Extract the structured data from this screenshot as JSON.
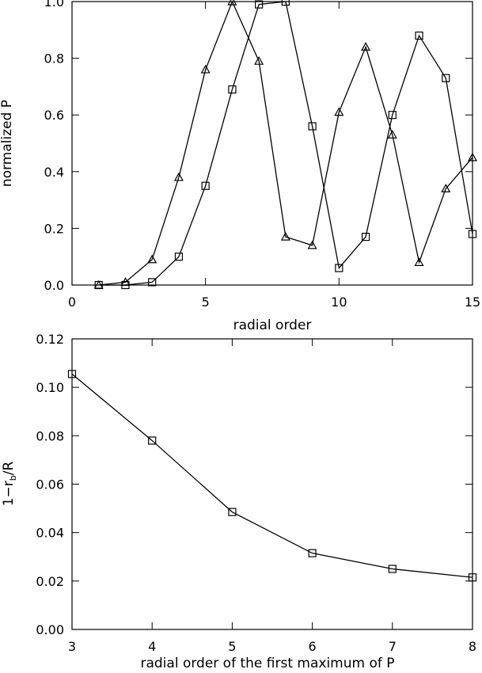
{
  "chart_data": [
    {
      "type": "line",
      "xlabel": "radial order",
      "ylabel": "normalized P",
      "xlim": [
        0,
        15
      ],
      "ylim": [
        0,
        1.0
      ],
      "x_ticks": [
        0,
        5,
        10,
        15
      ],
      "x_tick_labels": [
        "0",
        "5",
        "10",
        "15"
      ],
      "y_ticks": [
        0.0,
        0.2,
        0.4,
        0.6,
        0.8,
        1.0
      ],
      "y_tick_labels": [
        "0.0",
        "0.2",
        "0.4",
        "0.6",
        "0.8",
        "1.0"
      ],
      "grid": false,
      "series": [
        {
          "marker": "triangle",
          "x": [
            1,
            2,
            3,
            4,
            5,
            6,
            7,
            8,
            9,
            10,
            11,
            12,
            13,
            14,
            15
          ],
          "y": [
            0.0,
            0.01,
            0.09,
            0.38,
            0.76,
            1.0,
            0.79,
            0.17,
            0.14,
            0.61,
            0.84,
            0.53,
            0.08,
            0.34,
            0.45
          ]
        },
        {
          "marker": "square",
          "x": [
            1,
            2,
            3,
            4,
            5,
            6,
            7,
            8,
            9,
            10,
            11,
            12,
            13,
            14,
            15
          ],
          "y": [
            0.0,
            0.0,
            0.01,
            0.1,
            0.35,
            0.69,
            0.99,
            1.0,
            0.56,
            0.06,
            0.17,
            0.6,
            0.88,
            0.73,
            0.18
          ]
        }
      ]
    },
    {
      "type": "line",
      "xlabel": "radial order of the first maximum of P",
      "ylabel_main": "1−r",
      "ylabel_sub": "b",
      "ylabel_tail": "/R",
      "xlim": [
        3,
        8
      ],
      "ylim": [
        0,
        0.12
      ],
      "x_ticks": [
        3,
        4,
        5,
        6,
        7,
        8
      ],
      "x_tick_labels": [
        "3",
        "4",
        "5",
        "6",
        "7",
        "8"
      ],
      "y_ticks": [
        0.0,
        0.02,
        0.04,
        0.06,
        0.08,
        0.1,
        0.12
      ],
      "y_tick_labels": [
        "0.00",
        "0.02",
        "0.04",
        "0.06",
        "0.08",
        "0.10",
        "0.12"
      ],
      "grid": false,
      "series": [
        {
          "marker": "square",
          "x": [
            3,
            4,
            5,
            6,
            7,
            8
          ],
          "y": [
            0.1055,
            0.078,
            0.0485,
            0.0315,
            0.025,
            0.0215
          ]
        }
      ]
    }
  ]
}
